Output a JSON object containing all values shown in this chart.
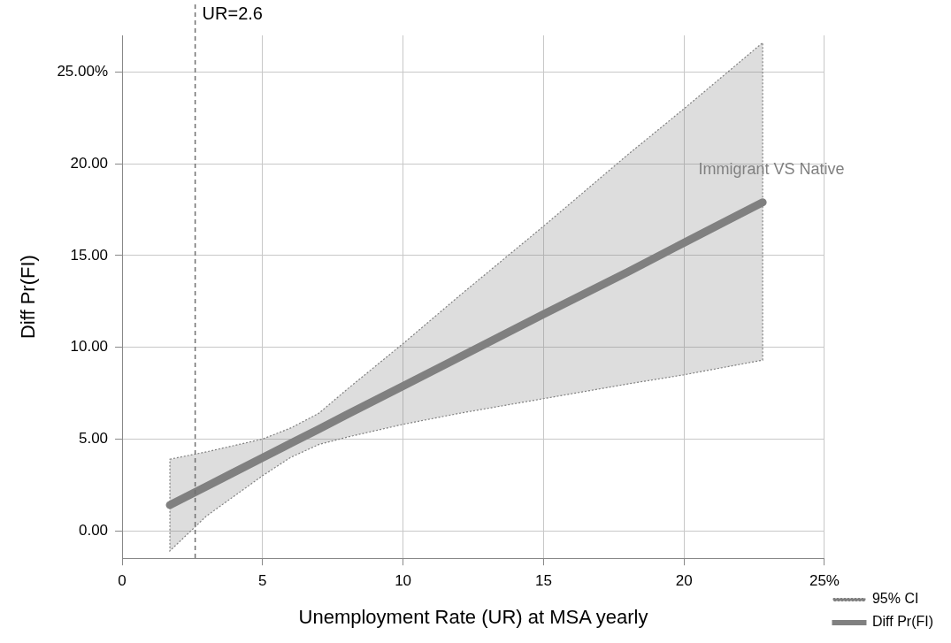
{
  "chart_data": {
    "type": "line",
    "xlabel": "Unemployment Rate (UR) at MSA yearly",
    "ylabel": "Diff Pr(FI)",
    "x": [
      1.7,
      3,
      5,
      6,
      7,
      8,
      10,
      12,
      15,
      18,
      20,
      22.8
    ],
    "series": [
      {
        "name": "Diff Pr(FI)",
        "color": "#808080",
        "values": [
          1.4,
          2.42,
          3.98,
          4.76,
          5.54,
          6.33,
          7.89,
          9.45,
          11.8,
          14.1,
          15.7,
          17.9
        ],
        "lower": [
          -1.1,
          0.8,
          3.0,
          4.0,
          4.7,
          5.1,
          5.8,
          6.4,
          7.2,
          8.0,
          8.5,
          9.3
        ],
        "upper": [
          3.9,
          4.3,
          5.0,
          5.6,
          6.4,
          7.7,
          10.2,
          12.8,
          16.6,
          20.5,
          23.0,
          26.6
        ]
      }
    ],
    "xlim": [
      0,
      25
    ],
    "xticks": [
      0,
      5,
      10,
      15,
      20,
      {
        "value": 25,
        "label": "25%"
      }
    ],
    "ylim": [
      -1.5,
      27
    ],
    "yticks": [
      {
        "value": 0,
        "label": "0.00"
      },
      {
        "value": 5,
        "label": "5.00"
      },
      {
        "value": 10,
        "label": "10.00"
      },
      {
        "value": 15,
        "label": "15.00"
      },
      {
        "value": 20,
        "label": "20.00"
      },
      {
        "value": 25,
        "label": "25.00%"
      }
    ],
    "ref_lines": [
      {
        "axis": "x",
        "value": 2.6,
        "label": "UR=2.6",
        "line_style": "dashed",
        "color": "#707070"
      }
    ],
    "annotations": [
      "Immigrant VS Native",
      "95% CI"
    ],
    "grid": true,
    "legend": "bottom right",
    "marker": "none"
  }
}
